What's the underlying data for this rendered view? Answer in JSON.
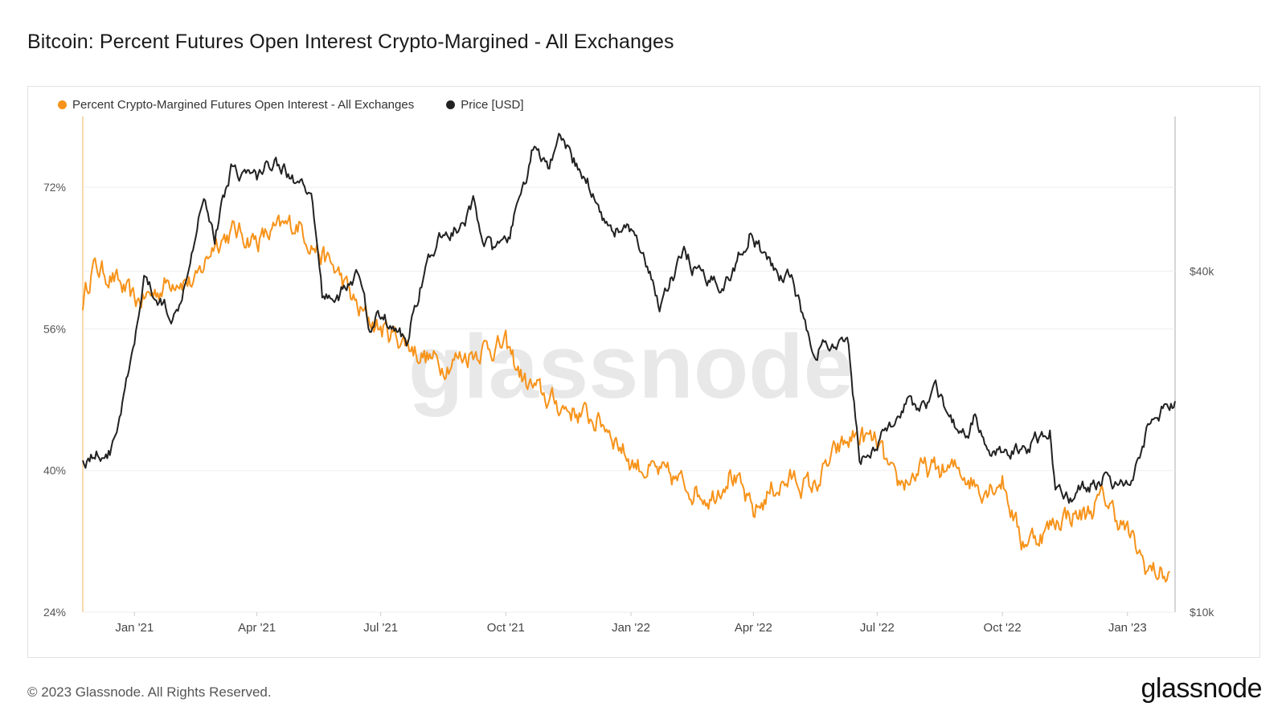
{
  "title": "Bitcoin: Percent Futures Open Interest Crypto-Margined - All Exchanges",
  "footer": {
    "copyright": "© 2023 Glassnode. All Rights Reserved.",
    "brand": "glassnode"
  },
  "watermark": "glassnode",
  "colors": {
    "oi": "#f7931a",
    "price": "#222222",
    "grid": "#eeeeee"
  },
  "chart_data": {
    "type": "line",
    "title": "Bitcoin: Percent Futures Open Interest Crypto-Margined - All Exchanges",
    "x_type": "date",
    "x_range": [
      "2020-11-24",
      "2023-02-05"
    ],
    "x_ticks": [
      "Jan '21",
      "Apr '21",
      "Jul '21",
      "Oct '21",
      "Jan '22",
      "Apr '22",
      "Jul '22",
      "Oct '22",
      "Jan '23"
    ],
    "x_tick_dates": [
      "2021-01-01",
      "2021-04-01",
      "2021-07-01",
      "2021-10-01",
      "2022-01-01",
      "2022-04-01",
      "2022-07-01",
      "2022-10-01",
      "2023-01-01"
    ],
    "y_left": {
      "ticks": [
        "24%",
        "40%",
        "56%",
        "72%"
      ],
      "tick_values": [
        24,
        40,
        56,
        72
      ],
      "range": [
        24,
        80
      ]
    },
    "y_right": {
      "ticks": [
        "$10k",
        "$40k"
      ],
      "tick_values": [
        10000,
        40000
      ],
      "scale": "log",
      "range": [
        10000,
        75000
      ]
    },
    "legend_position": "top-left",
    "grid": true,
    "series": [
      {
        "name": "Percent Crypto-Margined Futures Open Interest - All Exchanges",
        "axis": "left",
        "color": "#f7931a",
        "x": [
          "2020-11-24",
          "2020-12-01",
          "2020-12-15",
          "2021-01-01",
          "2021-01-15",
          "2021-02-01",
          "2021-02-15",
          "2021-03-01",
          "2021-03-15",
          "2021-04-01",
          "2021-04-15",
          "2021-05-01",
          "2021-05-15",
          "2021-06-01",
          "2021-06-15",
          "2021-07-01",
          "2021-07-15",
          "2021-08-01",
          "2021-08-15",
          "2021-09-01",
          "2021-09-15",
          "2021-10-01",
          "2021-10-15",
          "2021-11-01",
          "2021-11-15",
          "2021-12-01",
          "2021-12-15",
          "2022-01-01",
          "2022-01-15",
          "2022-02-01",
          "2022-02-15",
          "2022-03-01",
          "2022-03-15",
          "2022-04-01",
          "2022-04-15",
          "2022-05-01",
          "2022-05-15",
          "2022-06-01",
          "2022-06-15",
          "2022-07-01",
          "2022-07-15",
          "2022-08-01",
          "2022-08-15",
          "2022-09-01",
          "2022-09-15",
          "2022-10-01",
          "2022-10-15",
          "2022-11-01",
          "2022-11-15",
          "2022-12-01",
          "2022-12-15",
          "2023-01-01",
          "2023-01-15",
          "2023-02-01"
        ],
        "y": [
          59,
          63,
          62,
          59,
          60,
          62,
          61,
          66,
          67,
          66,
          67,
          68,
          65,
          62,
          58,
          56,
          55,
          53,
          52,
          53,
          54,
          54,
          50,
          48,
          47,
          46,
          45,
          41,
          40,
          39,
          38,
          37,
          40,
          35,
          38,
          39,
          38,
          42,
          44,
          43,
          38,
          40,
          40,
          40,
          38,
          39,
          32,
          33,
          35,
          35,
          37,
          33,
          29,
          28
        ]
      },
      {
        "name": "Price [USD]",
        "axis": "right",
        "color": "#222222",
        "x": [
          "2020-11-24",
          "2020-12-01",
          "2020-12-15",
          "2021-01-01",
          "2021-01-08",
          "2021-01-15",
          "2021-02-01",
          "2021-02-15",
          "2021-02-21",
          "2021-03-01",
          "2021-03-13",
          "2021-04-01",
          "2021-04-14",
          "2021-05-01",
          "2021-05-12",
          "2021-05-19",
          "2021-06-01",
          "2021-06-15",
          "2021-06-22",
          "2021-07-01",
          "2021-07-20",
          "2021-08-01",
          "2021-08-15",
          "2021-09-01",
          "2021-09-07",
          "2021-09-21",
          "2021-10-01",
          "2021-10-15",
          "2021-10-20",
          "2021-11-01",
          "2021-11-10",
          "2021-12-01",
          "2021-12-15",
          "2022-01-01",
          "2022-01-22",
          "2022-02-10",
          "2022-02-24",
          "2022-03-15",
          "2022-03-29",
          "2022-04-15",
          "2022-05-01",
          "2022-05-12",
          "2022-05-25",
          "2022-06-10",
          "2022-06-18",
          "2022-07-01",
          "2022-07-20",
          "2022-08-01",
          "2022-08-14",
          "2022-09-01",
          "2022-09-12",
          "2022-09-20",
          "2022-10-15",
          "2022-11-05",
          "2022-11-09",
          "2022-11-21",
          "2022-12-15",
          "2023-01-01",
          "2023-01-15",
          "2023-02-01",
          "2023-02-05"
        ],
        "y": [
          18500,
          19000,
          19300,
          29000,
          39000,
          36000,
          33500,
          48000,
          56000,
          46000,
          61000,
          58500,
          63500,
          57000,
          52000,
          36000,
          36500,
          39500,
          32000,
          33500,
          30000,
          39500,
          46000,
          48500,
          52000,
          43000,
          44000,
          57000,
          65000,
          61000,
          67500,
          57000,
          48000,
          47000,
          35000,
          43000,
          38000,
          39000,
          47000,
          40000,
          38500,
          29500,
          29500,
          29000,
          19000,
          19500,
          23500,
          23000,
          24400,
          20000,
          22300,
          18800,
          19200,
          21000,
          16500,
          16000,
          17400,
          16600,
          21000,
          23700,
          23300
        ]
      }
    ]
  }
}
